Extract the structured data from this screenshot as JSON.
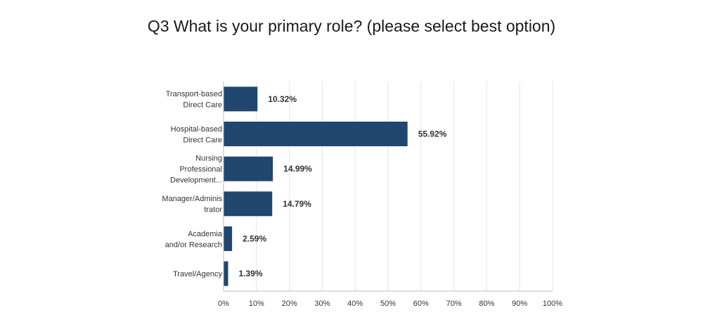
{
  "chart_data": {
    "type": "bar",
    "orientation": "horizontal",
    "title": "Q3 What is your primary role? (please select best option)",
    "categories": [
      [
        "Transport-based",
        "Direct Care"
      ],
      [
        "Hospital-based",
        "Direct Care"
      ],
      [
        "Nursing",
        "Professional",
        "Development..."
      ],
      [
        "Manager/Adminis",
        "trator"
      ],
      [
        "Academia",
        "and/or Research"
      ],
      [
        "Travel/Agency"
      ]
    ],
    "values": [
      10.32,
      55.92,
      14.99,
      14.79,
      2.59,
      1.39
    ],
    "value_labels": [
      "10.32%",
      "55.92%",
      "14.99%",
      "14.79%",
      "2.59%",
      "1.39%"
    ],
    "xlim": [
      0,
      100
    ],
    "ticks": [
      0,
      10,
      20,
      30,
      40,
      50,
      60,
      70,
      80,
      90,
      100
    ],
    "tick_labels": [
      "0%",
      "10%",
      "20%",
      "30%",
      "40%",
      "50%",
      "60%",
      "70%",
      "80%",
      "90%",
      "100%"
    ],
    "grid": true,
    "bar_color": "#21466f",
    "grid_color": "#e5e5e5"
  }
}
